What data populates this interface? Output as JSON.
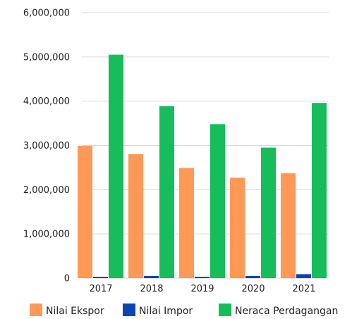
{
  "chart_data": {
    "type": "bar",
    "title": "",
    "xlabel": "",
    "ylabel": "",
    "categories": [
      "2017",
      "2018",
      "2019",
      "2020",
      "2021"
    ],
    "ylim": [
      0,
      6000000
    ],
    "yticks": [
      0,
      1000000,
      2000000,
      3000000,
      4000000,
      5000000,
      6000000
    ],
    "ytick_labels": [
      "0",
      "1,000,000",
      "2,000,000",
      "3,000,000",
      "4,000,000",
      "5,000,000",
      "6,000,000"
    ],
    "grid": true,
    "legend_position": "bottom",
    "series": [
      {
        "name": "Nilai Ekspor",
        "color": "#FF9955",
        "values": [
          2990000,
          2800000,
          2490000,
          2270000,
          2370000
        ]
      },
      {
        "name": "Nilai Impor",
        "color": "#0A44B0",
        "values": [
          30000,
          50000,
          30000,
          50000,
          90000
        ]
      },
      {
        "name": "Neraca Perdagangan",
        "color": "#16BD5A",
        "values": [
          5050000,
          3890000,
          3480000,
          2950000,
          3960000
        ]
      }
    ]
  }
}
